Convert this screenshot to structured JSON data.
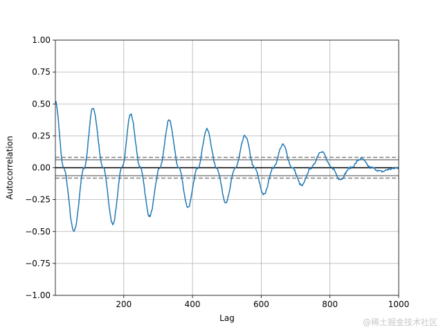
{
  "chart_data": {
    "type": "line",
    "title": "",
    "xlabel": "Lag",
    "ylabel": "Autocorrelation",
    "xlim": [
      1,
      1000
    ],
    "ylim": [
      -1.0,
      1.0
    ],
    "grid": true,
    "x_ticks": [
      200,
      400,
      600,
      800,
      1000
    ],
    "x_tick_labels": [
      "200",
      "400",
      "600",
      "800",
      "1000"
    ],
    "y_ticks": [
      -1.0,
      -0.75,
      -0.5,
      -0.25,
      0.0,
      0.25,
      0.5,
      0.75,
      1.0
    ],
    "y_tick_labels": [
      "−1.00",
      "−0.75",
      "−0.50",
      "−0.25",
      "0.00",
      "0.25",
      "0.50",
      "0.75",
      "1.00"
    ],
    "confidence_bands": {
      "z95": 0.062,
      "z99": 0.081
    },
    "series": [
      {
        "color": "#1f77b4",
        "x": [
          1,
          25,
          55,
          85,
          110,
          140,
          168,
          195,
          220,
          248,
          275,
          305,
          332,
          360,
          387,
          415,
          442,
          470,
          497,
          525,
          553,
          580,
          608,
          635,
          663,
          690,
          718,
          745,
          775,
          805,
          830,
          860,
          890,
          920,
          950,
          975,
          1000
        ],
        "values": [
          0.52,
          0.0,
          -0.5,
          0.0,
          0.47,
          0.0,
          -0.44,
          0.0,
          0.42,
          0.0,
          -0.38,
          0.0,
          0.37,
          0.0,
          -0.31,
          0.0,
          0.3,
          0.0,
          -0.27,
          0.0,
          0.25,
          0.0,
          -0.21,
          0.0,
          0.18,
          0.0,
          -0.14,
          0.0,
          0.13,
          0.0,
          -0.09,
          0.0,
          0.07,
          0.0,
          -0.03,
          -0.01,
          0.0
        ]
      }
    ]
  },
  "watermark": "@稀土掘金技术社区"
}
